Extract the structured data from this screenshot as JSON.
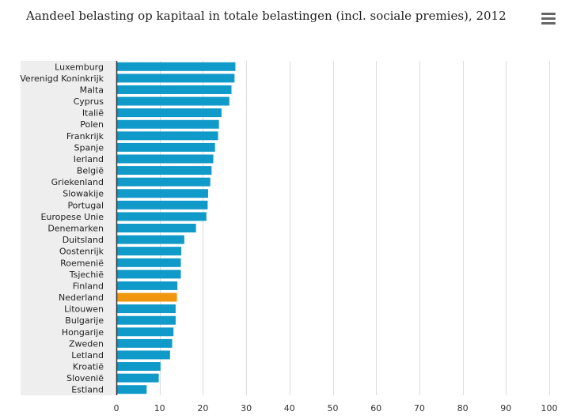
{
  "header": {
    "menu_icon": "hamburger-menu-icon"
  },
  "colors": {
    "bar": "#0f9ac9",
    "highlight": "#f0960f",
    "label_band": "#eeeeee",
    "grid": "#dddddd",
    "axis": "#333333"
  },
  "chart_data": {
    "type": "bar",
    "orientation": "horizontal",
    "title": "Aandeel belasting op kapitaal in totale belastingen (incl. sociale premies), 2012",
    "xlabel": "",
    "ylabel": "",
    "xlim": [
      0,
      100
    ],
    "xticks": [
      0,
      10,
      20,
      30,
      40,
      50,
      60,
      70,
      80,
      90,
      100
    ],
    "grid": true,
    "highlight_category": "Nederland",
    "categories": [
      "Luxemburg",
      "Verenigd Koninkrijk",
      "Malta",
      "Cyprus",
      "Italië",
      "Polen",
      "Frankrijk",
      "Spanje",
      "Ierland",
      "België",
      "Griekenland",
      "Slowakije",
      "Portugal",
      "Europese Unie",
      "Denemarken",
      "Duitsland",
      "Oostenrijk",
      "Roemenië",
      "Tsjechië",
      "Finland",
      "Nederland",
      "Litouwen",
      "Bulgarije",
      "Hongarije",
      "Zweden",
      "Letland",
      "Kroatië",
      "Slovenië",
      "Estland"
    ],
    "values": [
      27.5,
      27.3,
      26.6,
      26.1,
      24.3,
      23.7,
      23.5,
      22.8,
      22.4,
      22.0,
      21.7,
      21.2,
      21.1,
      20.8,
      18.4,
      15.7,
      15.0,
      14.9,
      14.9,
      14.1,
      14.0,
      13.7,
      13.7,
      13.2,
      12.9,
      12.4,
      10.2,
      9.8,
      7.0
    ]
  }
}
